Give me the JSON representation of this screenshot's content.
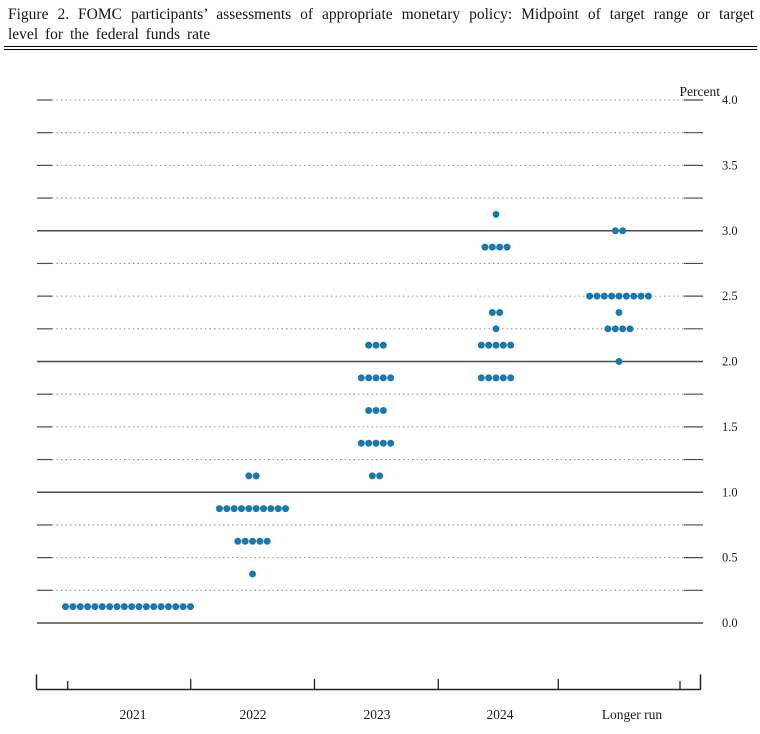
{
  "figure": {
    "title": "Figure 2.  FOMC participants’ assessments of appropriate monetary policy:  Midpoint of target range or target level for the federal funds rate"
  },
  "chart_data": {
    "type": "scatter",
    "variant": "fomc-dot-plot",
    "title": "FOMC participants’ assessments of appropriate monetary policy: Midpoint of target range or target level for the federal funds rate",
    "unit_label": "Percent",
    "dot_color": "#1a79b0",
    "categories": [
      "2021",
      "2022",
      "2023",
      "2024",
      "Longer run"
    ],
    "y_axis": {
      "min": 0.0,
      "max": 4.0,
      "grid_step": 0.25,
      "label_step": 0.5,
      "tick_labels": [
        "4.0",
        "3.5",
        "3.0",
        "2.5",
        "2.0",
        "1.5",
        "1.0",
        "0.5",
        "0.0"
      ],
      "solid_line_levels": [
        0.0,
        1.0,
        2.0,
        3.0
      ],
      "grid": true
    },
    "legend": {
      "shown": false
    },
    "columns": [
      {
        "label": "2021",
        "clusters": [
          {
            "rate": 0.125,
            "count": 18
          }
        ]
      },
      {
        "label": "2022",
        "clusters": [
          {
            "rate": 0.375,
            "count": 1
          },
          {
            "rate": 0.625,
            "count": 5
          },
          {
            "rate": 0.875,
            "count": 10
          },
          {
            "rate": 1.125,
            "count": 2
          }
        ]
      },
      {
        "label": "2023",
        "clusters": [
          {
            "rate": 1.125,
            "count": 2
          },
          {
            "rate": 1.375,
            "count": 5
          },
          {
            "rate": 1.625,
            "count": 3
          },
          {
            "rate": 1.875,
            "count": 5
          },
          {
            "rate": 2.125,
            "count": 3
          }
        ]
      },
      {
        "label": "2024",
        "clusters": [
          {
            "rate": 1.875,
            "count": 5
          },
          {
            "rate": 2.125,
            "count": 5
          },
          {
            "rate": 2.25,
            "count": 1
          },
          {
            "rate": 2.375,
            "count": 2
          },
          {
            "rate": 2.875,
            "count": 4
          },
          {
            "rate": 3.125,
            "count": 1
          }
        ]
      },
      {
        "label": "Longer run",
        "clusters": [
          {
            "rate": 2.0,
            "count": 1
          },
          {
            "rate": 2.25,
            "count": 4
          },
          {
            "rate": 2.375,
            "count": 1
          },
          {
            "rate": 2.5,
            "count": 9
          },
          {
            "rate": 3.0,
            "count": 2
          }
        ]
      }
    ]
  }
}
